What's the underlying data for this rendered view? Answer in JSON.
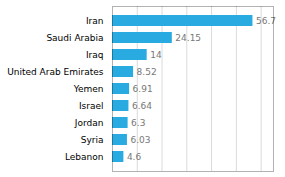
{
  "chart_data": {
    "type": "bar",
    "orientation": "horizontal",
    "categories": [
      "Iran",
      "Saudi Arabia",
      "Iraq",
      "United Arab Emirates",
      "Yemen",
      "Israel",
      "Jordan",
      "Syria",
      "Lebanon"
    ],
    "values": [
      56.7,
      24.15,
      14,
      8.52,
      6.91,
      6.64,
      6.3,
      6.03,
      4.6
    ],
    "color": "#29abe2",
    "xlim": [
      0,
      65
    ],
    "xticks": [
      10,
      20,
      30,
      40,
      50,
      60
    ],
    "grid": true,
    "data_labels": true,
    "tick_labels": "y"
  }
}
